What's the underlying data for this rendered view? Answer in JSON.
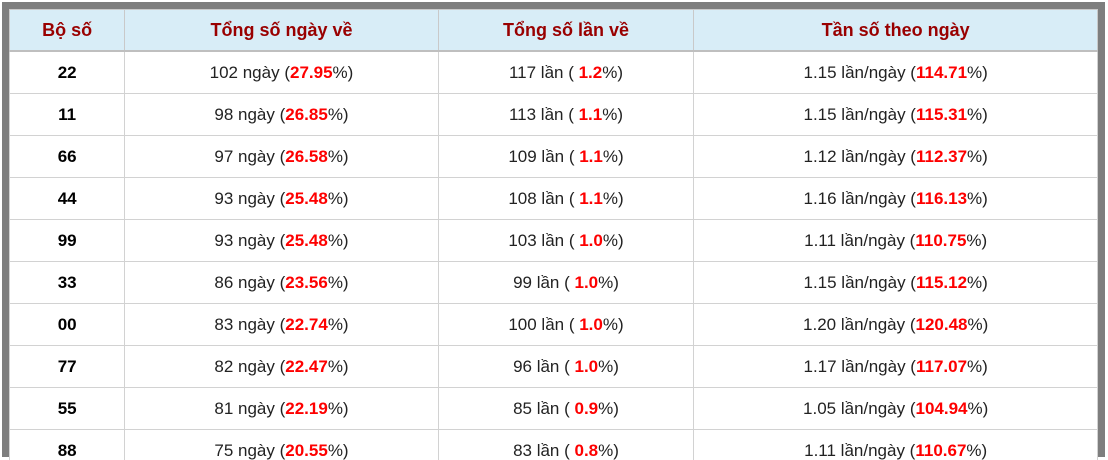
{
  "colors": {
    "header_bg": "#d8edf7",
    "header_text": "#990000",
    "accent_red": "#fe0000",
    "frame_gray": "#7e7e7e",
    "grid_line": "#c9c9c9",
    "body_text": "#222222"
  },
  "table": {
    "headers": [
      "Bộ số",
      "Tổng số ngày về",
      "Tổng số lần về",
      "Tần số theo ngày"
    ],
    "rows": [
      {
        "pair": "22",
        "days": {
          "pre": "102 ngày (",
          "value": "27.95",
          "post": "%)"
        },
        "times": {
          "pre": "117 lần ( ",
          "value": "1.2",
          "post": "%)"
        },
        "freq": {
          "pre": "1.15 lần/ngày (",
          "value": "114.71",
          "post": "%)"
        }
      },
      {
        "pair": "11",
        "days": {
          "pre": "98 ngày (",
          "value": "26.85",
          "post": "%)"
        },
        "times": {
          "pre": "113 lần ( ",
          "value": "1.1",
          "post": "%)"
        },
        "freq": {
          "pre": "1.15 lần/ngày (",
          "value": "115.31",
          "post": "%)"
        }
      },
      {
        "pair": "66",
        "days": {
          "pre": "97 ngày (",
          "value": "26.58",
          "post": "%)"
        },
        "times": {
          "pre": "109 lần ( ",
          "value": "1.1",
          "post": "%)"
        },
        "freq": {
          "pre": "1.12 lần/ngày (",
          "value": "112.37",
          "post": "%)"
        }
      },
      {
        "pair": "44",
        "days": {
          "pre": "93 ngày (",
          "value": "25.48",
          "post": "%)"
        },
        "times": {
          "pre": "108 lần ( ",
          "value": "1.1",
          "post": "%)"
        },
        "freq": {
          "pre": "1.16 lần/ngày (",
          "value": "116.13",
          "post": "%)"
        }
      },
      {
        "pair": "99",
        "days": {
          "pre": "93 ngày (",
          "value": "25.48",
          "post": "%)"
        },
        "times": {
          "pre": "103 lần ( ",
          "value": "1.0",
          "post": "%)"
        },
        "freq": {
          "pre": "1.11 lần/ngày (",
          "value": "110.75",
          "post": "%)"
        }
      },
      {
        "pair": "33",
        "days": {
          "pre": "86 ngày (",
          "value": "23.56",
          "post": "%)"
        },
        "times": {
          "pre": "99 lần ( ",
          "value": "1.0",
          "post": "%)"
        },
        "freq": {
          "pre": "1.15 lần/ngày (",
          "value": "115.12",
          "post": "%)"
        }
      },
      {
        "pair": "00",
        "days": {
          "pre": "83 ngày (",
          "value": "22.74",
          "post": "%)"
        },
        "times": {
          "pre": "100 lần ( ",
          "value": "1.0",
          "post": "%)"
        },
        "freq": {
          "pre": "1.20 lần/ngày (",
          "value": "120.48",
          "post": "%)"
        }
      },
      {
        "pair": "77",
        "days": {
          "pre": "82 ngày (",
          "value": "22.47",
          "post": "%)"
        },
        "times": {
          "pre": "96 lần ( ",
          "value": "1.0",
          "post": "%)"
        },
        "freq": {
          "pre": "1.17 lần/ngày (",
          "value": "117.07",
          "post": "%)"
        }
      },
      {
        "pair": "55",
        "days": {
          "pre": "81 ngày (",
          "value": "22.19",
          "post": "%)"
        },
        "times": {
          "pre": "85 lần ( ",
          "value": "0.9",
          "post": "%)"
        },
        "freq": {
          "pre": "1.05 lần/ngày (",
          "value": "104.94",
          "post": "%)"
        }
      },
      {
        "pair": "88",
        "days": {
          "pre": "75 ngày (",
          "value": "20.55",
          "post": "%)"
        },
        "times": {
          "pre": "83 lần ( ",
          "value": "0.8",
          "post": "%)"
        },
        "freq": {
          "pre": "1.11 lần/ngày (",
          "value": "110.67",
          "post": "%)"
        }
      }
    ]
  },
  "chart_data": {
    "type": "table",
    "title": "",
    "columns": [
      "Bộ số",
      "Tổng số ngày về",
      "Tổng số lần về",
      "Tần số theo ngày"
    ],
    "rows": [
      [
        "22",
        "102 ngày (27.95%)",
        "117 lần ( 1.2%)",
        "1.15 lần/ngày (114.71%)"
      ],
      [
        "11",
        "98 ngày (26.85%)",
        "113 lần ( 1.1%)",
        "1.15 lần/ngày (115.31%)"
      ],
      [
        "66",
        "97 ngày (26.58%)",
        "109 lần ( 1.1%)",
        "1.12 lần/ngày (112.37%)"
      ],
      [
        "44",
        "93 ngày (25.48%)",
        "108 lần ( 1.1%)",
        "1.16 lần/ngày (116.13%)"
      ],
      [
        "99",
        "93 ngày (25.48%)",
        "103 lần ( 1.0%)",
        "1.11 lần/ngày (110.75%)"
      ],
      [
        "33",
        "86 ngày (23.56%)",
        "99 lần ( 1.0%)",
        "1.15 lần/ngày (115.12%)"
      ],
      [
        "00",
        "83 ngày (22.74%)",
        "100 lần ( 1.0%)",
        "1.20 lần/ngày (120.48%)"
      ],
      [
        "77",
        "82 ngày (22.47%)",
        "96 lần ( 1.0%)",
        "1.17 lần/ngày (117.07%)"
      ],
      [
        "55",
        "81 ngày (22.19%)",
        "85 lần ( 0.9%)",
        "1.05 lần/ngày (104.94%)"
      ],
      [
        "88",
        "75 ngày (20.55%)",
        "83 lần ( 0.8%)",
        "1.11 lần/ngày (110.67%)"
      ]
    ],
    "numeric": {
      "pairs": [
        "22",
        "11",
        "66",
        "44",
        "99",
        "33",
        "00",
        "77",
        "55",
        "88"
      ],
      "days": [
        102,
        98,
        97,
        93,
        93,
        86,
        83,
        82,
        81,
        75
      ],
      "days_pct": [
        27.95,
        26.85,
        26.58,
        25.48,
        25.48,
        23.56,
        22.74,
        22.47,
        22.19,
        20.55
      ],
      "times": [
        117,
        113,
        109,
        108,
        103,
        99,
        100,
        96,
        85,
        83
      ],
      "times_pct": [
        1.2,
        1.1,
        1.1,
        1.1,
        1.0,
        1.0,
        1.0,
        1.0,
        0.9,
        0.8
      ],
      "freq_per_day": [
        1.15,
        1.15,
        1.12,
        1.16,
        1.11,
        1.15,
        1.2,
        1.17,
        1.05,
        1.11
      ],
      "freq_pct": [
        114.71,
        115.31,
        112.37,
        116.13,
        110.75,
        115.12,
        120.48,
        117.07,
        104.94,
        110.67
      ]
    }
  }
}
